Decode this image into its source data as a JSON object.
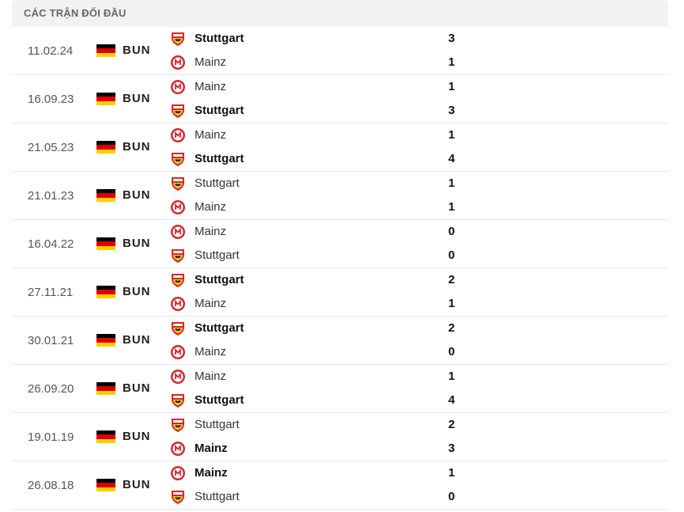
{
  "header": {
    "title": "CÁC TRẬN ĐỐI ĐẦU"
  },
  "colors": {
    "header_bg": "#f2f2f2",
    "stuttgart_red": "#e32221",
    "stuttgart_yellow": "#f5c518",
    "mainz_red": "#d9262d"
  },
  "league": {
    "code": "BUN",
    "flag_icon": "germany-flag-icon"
  },
  "matches": [
    {
      "date": "11.02.24",
      "league": "BUN",
      "home": {
        "name": "Stuttgart",
        "logo": "stuttgart-logo-icon",
        "score": "3",
        "winner": true
      },
      "away": {
        "name": "Mainz",
        "logo": "mainz-logo-icon",
        "score": "1",
        "winner": false
      }
    },
    {
      "date": "16.09.23",
      "league": "BUN",
      "home": {
        "name": "Mainz",
        "logo": "mainz-logo-icon",
        "score": "1",
        "winner": false
      },
      "away": {
        "name": "Stuttgart",
        "logo": "stuttgart-logo-icon",
        "score": "3",
        "winner": true
      }
    },
    {
      "date": "21.05.23",
      "league": "BUN",
      "home": {
        "name": "Mainz",
        "logo": "mainz-logo-icon",
        "score": "1",
        "winner": false
      },
      "away": {
        "name": "Stuttgart",
        "logo": "stuttgart-logo-icon",
        "score": "4",
        "winner": true
      }
    },
    {
      "date": "21.01.23",
      "league": "BUN",
      "home": {
        "name": "Stuttgart",
        "logo": "stuttgart-logo-icon",
        "score": "1",
        "winner": false
      },
      "away": {
        "name": "Mainz",
        "logo": "mainz-logo-icon",
        "score": "1",
        "winner": false
      }
    },
    {
      "date": "16.04.22",
      "league": "BUN",
      "home": {
        "name": "Mainz",
        "logo": "mainz-logo-icon",
        "score": "0",
        "winner": false
      },
      "away": {
        "name": "Stuttgart",
        "logo": "stuttgart-logo-icon",
        "score": "0",
        "winner": false
      }
    },
    {
      "date": "27.11.21",
      "league": "BUN",
      "home": {
        "name": "Stuttgart",
        "logo": "stuttgart-logo-icon",
        "score": "2",
        "winner": true
      },
      "away": {
        "name": "Mainz",
        "logo": "mainz-logo-icon",
        "score": "1",
        "winner": false
      }
    },
    {
      "date": "30.01.21",
      "league": "BUN",
      "home": {
        "name": "Stuttgart",
        "logo": "stuttgart-logo-icon",
        "score": "2",
        "winner": true
      },
      "away": {
        "name": "Mainz",
        "logo": "mainz-logo-icon",
        "score": "0",
        "winner": false
      }
    },
    {
      "date": "26.09.20",
      "league": "BUN",
      "home": {
        "name": "Mainz",
        "logo": "mainz-logo-icon",
        "score": "1",
        "winner": false
      },
      "away": {
        "name": "Stuttgart",
        "logo": "stuttgart-logo-icon",
        "score": "4",
        "winner": true
      }
    },
    {
      "date": "19.01.19",
      "league": "BUN",
      "home": {
        "name": "Stuttgart",
        "logo": "stuttgart-logo-icon",
        "score": "2",
        "winner": false
      },
      "away": {
        "name": "Mainz",
        "logo": "mainz-logo-icon",
        "score": "3",
        "winner": true
      }
    },
    {
      "date": "26.08.18",
      "league": "BUN",
      "home": {
        "name": "Mainz",
        "logo": "mainz-logo-icon",
        "score": "1",
        "winner": true
      },
      "away": {
        "name": "Stuttgart",
        "logo": "stuttgart-logo-icon",
        "score": "0",
        "winner": false
      }
    }
  ]
}
